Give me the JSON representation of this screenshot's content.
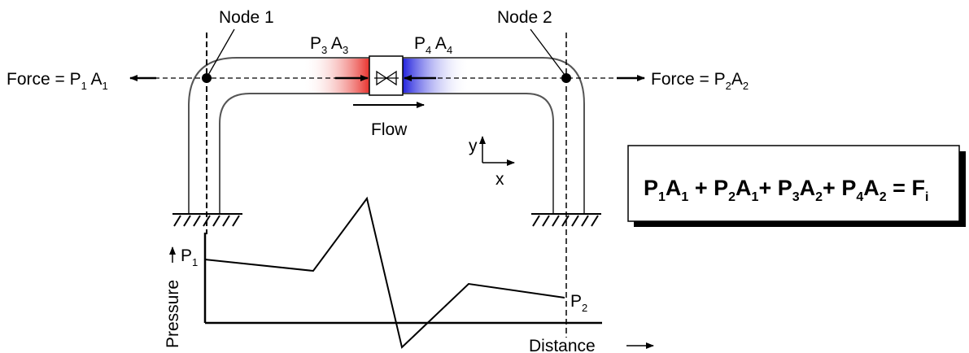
{
  "labels": {
    "node1": "Node 1",
    "node2": "Node 2",
    "force_left": {
      "prefix": "Force = P",
      "s1": "1",
      "mid": " A",
      "s2": "1"
    },
    "force_right": {
      "prefix": "Force = P",
      "s1": "2",
      "mid": "A",
      "s2": "2"
    },
    "p3a3": {
      "p": "P",
      "s1": "3",
      "a": " A",
      "s2": "3"
    },
    "p4a4": {
      "p": "P",
      "s1": "4",
      "a": " A",
      "s2": "4"
    },
    "flow": "Flow",
    "axis_y": "y",
    "axis_x": "x",
    "pressure": "Pressure",
    "distance": "Distance",
    "p1": {
      "p": "P",
      "s": "1"
    },
    "p2": {
      "p": "P",
      "s": "2"
    }
  },
  "equation": {
    "terms": [
      {
        "p": "P",
        "ps": "1",
        "a": "A",
        "as": "1",
        "op": " + "
      },
      {
        "p": "P",
        "ps": "2",
        "a": "A",
        "as": "1",
        "op": "+ "
      },
      {
        "p": "P",
        "ps": "3",
        "a": "A",
        "as": "2",
        "op": "+ "
      },
      {
        "p": "P",
        "ps": "4",
        "a": "A",
        "as": "2",
        "op": " = "
      }
    ],
    "rhs": {
      "f": "F",
      "s": "i"
    }
  },
  "colors": {
    "upstream_gradient": "#e8332e",
    "downstream_gradient": "#2222dd",
    "line": "#000000"
  }
}
